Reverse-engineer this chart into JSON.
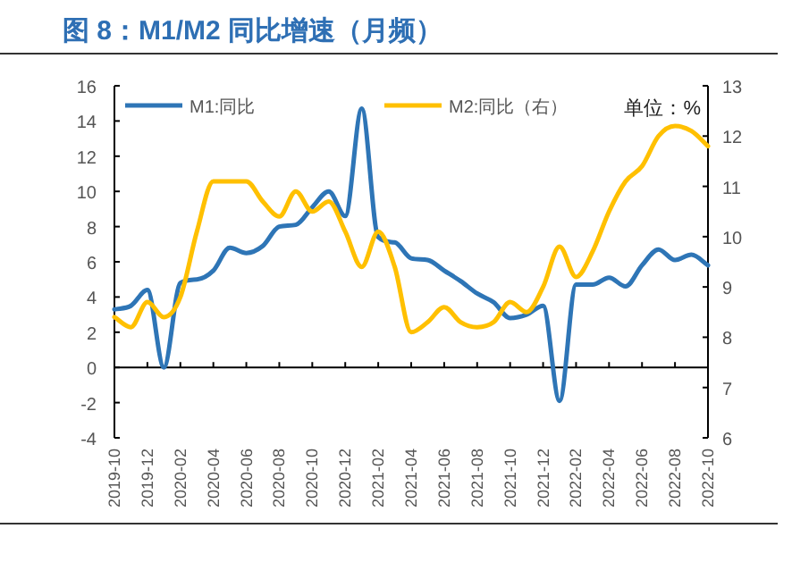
{
  "chart_data": {
    "type": "line",
    "title": "图 8：M1/M2 同比增速（月频）",
    "categories": [
      "2019-10",
      null,
      "2019-12",
      null,
      "2020-02",
      null,
      "2020-04",
      null,
      "2020-06",
      null,
      "2020-08",
      null,
      "2020-10",
      null,
      "2020-12",
      null,
      "2021-02",
      null,
      "2021-04",
      null,
      "2021-06",
      null,
      "2021-08",
      null,
      "2021-10",
      null,
      "2021-12",
      null,
      "2022-02",
      null,
      "2022-04",
      null,
      "2022-06",
      null,
      "2022-08",
      null,
      "2022-10"
    ],
    "series": [
      {
        "name": "M1:同比",
        "color": "#2e75b6",
        "values": [
          3.3,
          3.5,
          4.4,
          0.0,
          4.8,
          5.0,
          5.5,
          6.8,
          6.5,
          6.9,
          8.0,
          8.1,
          9.1,
          10.0,
          8.6,
          14.7,
          7.4,
          7.1,
          6.2,
          6.1,
          5.5,
          4.9,
          4.2,
          3.7,
          2.8,
          3.0,
          3.5,
          -1.9,
          4.7,
          4.7,
          5.1,
          4.6,
          5.8,
          6.7,
          6.1,
          6.4,
          5.8
        ]
      },
      {
        "name": "M2:同比（右）",
        "color": "#ffc000",
        "axis": "y2",
        "values": [
          8.4,
          8.2,
          8.7,
          8.4,
          8.8,
          10.1,
          11.1,
          11.1,
          11.1,
          10.7,
          10.4,
          10.9,
          10.5,
          10.7,
          10.1,
          9.4,
          10.1,
          9.4,
          8.1,
          8.3,
          8.6,
          8.3,
          8.2,
          8.3,
          8.7,
          8.5,
          9.0,
          9.8,
          9.2,
          9.7,
          10.5,
          11.1,
          11.4,
          12.0,
          12.2,
          12.1,
          11.8
        ]
      }
    ],
    "ylim": [
      -4,
      16
    ],
    "yticks": [
      -4,
      -2,
      0,
      2,
      4,
      6,
      8,
      10,
      12,
      14,
      16
    ],
    "y2lim": [
      6,
      13
    ],
    "y2ticks": [
      6,
      7,
      8,
      9,
      10,
      11,
      12,
      13
    ],
    "annotations": [
      "单位：%"
    ],
    "legend": "top"
  }
}
